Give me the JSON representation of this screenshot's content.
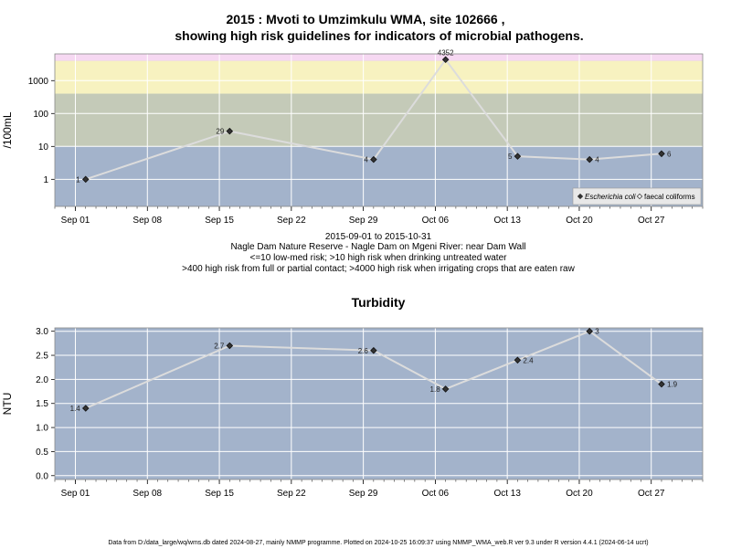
{
  "title_line1": "2015 : Mvoti to Umzimkulu WMA, site 102666 ,",
  "title_line2": "showing high risk guidelines for indicators of microbial pathogens.",
  "caption": [
    "2015-09-01 to 2015-10-31",
    "Nagle Dam Nature Reserve - Nagle Dam on Mgeni River: near Dam Wall",
    "<=10 low-med risk; >10 high risk when drinking untreated water",
    ">400 high risk from full or partial contact; >4000 high risk when irrigating crops that are eaten raw"
  ],
  "footer": "Data from D:/data_large/wq/wms.db dated 2024-08-27, mainly NMMP programme. Plotted on 2024-10-25 16:09:37 using NMMP_WMA_web.R ver 9.3 under R version 4.4.1 (2024-06-14 ucrt)",
  "colors": {
    "panel_bg": "#a3b3cb",
    "band_low": "#a3b3cb",
    "band_mid": "#c4cab8",
    "band_high": "#f7f2c0",
    "band_top": "#f6d8f2",
    "line": "#dcdcdc",
    "point": "#333333"
  },
  "chart_data": [
    {
      "type": "line",
      "title": "",
      "ylabel": "/100mL",
      "xlabel": "",
      "yscale": "log10",
      "ylim": [
        0.15,
        6500
      ],
      "xlim": [
        "2015-08-30",
        "2015-11-01"
      ],
      "x_ticks": [
        "Sep 01",
        "Sep 08",
        "Sep 15",
        "Sep 22",
        "Sep 29",
        "Oct 06",
        "Oct 13",
        "Oct 20",
        "Oct 27"
      ],
      "y_ticks": [
        "1",
        "10",
        "100",
        "1000"
      ],
      "grid": true,
      "legend_position": "bottom-right",
      "risk_bands": [
        {
          "from": 0.15,
          "to": 10,
          "color_key": "band_low"
        },
        {
          "from": 10,
          "to": 400,
          "color_key": "band_mid"
        },
        {
          "from": 400,
          "to": 4000,
          "color_key": "band_high"
        },
        {
          "from": 4000,
          "to": 6500,
          "color_key": "band_top"
        }
      ],
      "legend": [
        {
          "label": "Escherichia coli",
          "marker": "filled-diamond",
          "italic": true
        },
        {
          "label": "faecal coliforms",
          "marker": "open-diamond",
          "italic": false
        }
      ],
      "series": [
        {
          "name": "Escherichia coli",
          "x": [
            "2015-09-02",
            "2015-09-16",
            "2015-09-30",
            "2015-10-07",
            "2015-10-14",
            "2015-10-21",
            "2015-10-28"
          ],
          "values": [
            1,
            29,
            4,
            4352,
            5,
            4,
            6
          ],
          "labels": [
            "1",
            "29",
            "4",
            "4352",
            "5",
            "4",
            "6"
          ],
          "label_side": [
            "left",
            "left",
            "left",
            "above",
            "left",
            "right",
            "right"
          ]
        }
      ]
    },
    {
      "type": "line",
      "title": "Turbidity",
      "ylabel": "NTU",
      "xlabel": "",
      "ylim": [
        -0.08,
        3.07
      ],
      "xlim": [
        "2015-08-30",
        "2015-11-01"
      ],
      "x_ticks": [
        "Sep 01",
        "Sep 08",
        "Sep 15",
        "Sep 22",
        "Sep 29",
        "Oct 06",
        "Oct 13",
        "Oct 20",
        "Oct 27"
      ],
      "y_ticks": [
        "0.0",
        "0.5",
        "1.0",
        "1.5",
        "2.0",
        "2.5",
        "3.0"
      ],
      "grid": true,
      "series": [
        {
          "name": "",
          "x": [
            "2015-09-02",
            "2015-09-16",
            "2015-09-30",
            "2015-10-07",
            "2015-10-14",
            "2015-10-21",
            "2015-10-28"
          ],
          "values": [
            1.4,
            2.7,
            2.6,
            1.8,
            2.4,
            3,
            1.9
          ],
          "labels": [
            "1.4",
            "2.7",
            "2.6",
            "1.8",
            "2.4",
            "3",
            "1.9"
          ],
          "label_side": [
            "left",
            "left",
            "left",
            "left",
            "right",
            "right",
            "right"
          ]
        }
      ]
    }
  ]
}
